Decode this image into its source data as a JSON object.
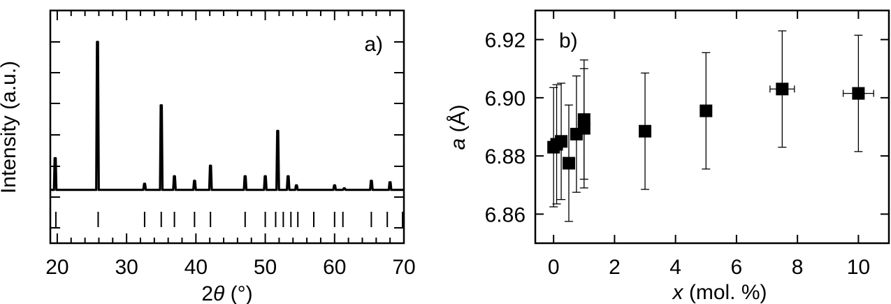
{
  "chart_data": [
    {
      "type": "line",
      "panel_label": "a)",
      "xlabel_prefix": "2",
      "xlabel_theta": "θ",
      "xlabel_suffix": " (°)",
      "ylabel": "Intensity (a.u.)",
      "xlim": [
        19,
        70
      ],
      "xticks": [
        20,
        30,
        40,
        50,
        60,
        70
      ],
      "yticks_shown": false,
      "grid": false,
      "baseline": 0.02,
      "peaks": [
        {
          "x": 19.7,
          "h": 0.23
        },
        {
          "x": 25.8,
          "h": 1.0
        },
        {
          "x": 32.6,
          "h": 0.06
        },
        {
          "x": 35.0,
          "h": 0.58
        },
        {
          "x": 36.9,
          "h": 0.11
        },
        {
          "x": 39.8,
          "h": 0.08
        },
        {
          "x": 42.1,
          "h": 0.18
        },
        {
          "x": 47.1,
          "h": 0.11
        },
        {
          "x": 50.0,
          "h": 0.11
        },
        {
          "x": 51.8,
          "h": 0.41
        },
        {
          "x": 53.3,
          "h": 0.11
        },
        {
          "x": 54.5,
          "h": 0.05
        },
        {
          "x": 57.1,
          "h": 0.02
        },
        {
          "x": 60.0,
          "h": 0.05
        },
        {
          "x": 61.4,
          "h": 0.03
        },
        {
          "x": 65.3,
          "h": 0.08
        },
        {
          "x": 68.0,
          "h": 0.07
        }
      ],
      "reference_ticks": [
        19.8,
        25.9,
        32.6,
        35.0,
        36.9,
        39.8,
        42.1,
        47.1,
        50.0,
        51.5,
        52.6,
        53.7,
        54.7,
        57.0,
        60.0,
        61.2,
        65.3,
        67.6,
        69.8
      ]
    },
    {
      "type": "scatter",
      "panel_label": "b)",
      "xlabel_var": "x",
      "xlabel_unit": " (mol. %)",
      "ylabel_var": "a",
      "ylabel_unit": " (Å)",
      "xlim": [
        -0.6,
        11.0
      ],
      "ylim": [
        6.85,
        6.93
      ],
      "xticks": [
        "0",
        "2",
        "4",
        "6",
        "8",
        "10"
      ],
      "xtick_values": [
        0,
        2,
        4,
        6,
        8,
        10
      ],
      "yticks": [
        "6.86",
        "6.88",
        "6.90",
        "6.92"
      ],
      "ytick_values": [
        6.86,
        6.88,
        6.9,
        6.92
      ],
      "grid": false,
      "marker": "square",
      "points": [
        {
          "x": 0.0,
          "y": 6.883,
          "yerr": 0.0205,
          "xerr": 0.1
        },
        {
          "x": 0.1,
          "y": 6.884,
          "yerr": 0.0205,
          "xerr": 0.1
        },
        {
          "x": 0.25,
          "y": 6.885,
          "yerr": 0.02,
          "xerr": 0.1
        },
        {
          "x": 0.5,
          "y": 6.8775,
          "yerr": 0.02,
          "xerr": 0.1
        },
        {
          "x": 0.75,
          "y": 6.8875,
          "yerr": 0.02,
          "xerr": 0.1
        },
        {
          "x": 1.0,
          "y": 6.8925,
          "yerr": 0.0205,
          "xerr": 0.1
        },
        {
          "x": 1.0,
          "y": 6.8895,
          "yerr": 0.0205,
          "xerr": 0.1
        },
        {
          "x": 3.0,
          "y": 6.8885,
          "yerr": 0.02,
          "xerr": 0.1
        },
        {
          "x": 5.0,
          "y": 6.8955,
          "yerr": 0.02,
          "xerr": 0.15
        },
        {
          "x": 7.5,
          "y": 6.903,
          "yerr": 0.02,
          "xerr": 0.4
        },
        {
          "x": 10.0,
          "y": 6.9015,
          "yerr": 0.02,
          "xerr": 0.5
        }
      ]
    }
  ]
}
